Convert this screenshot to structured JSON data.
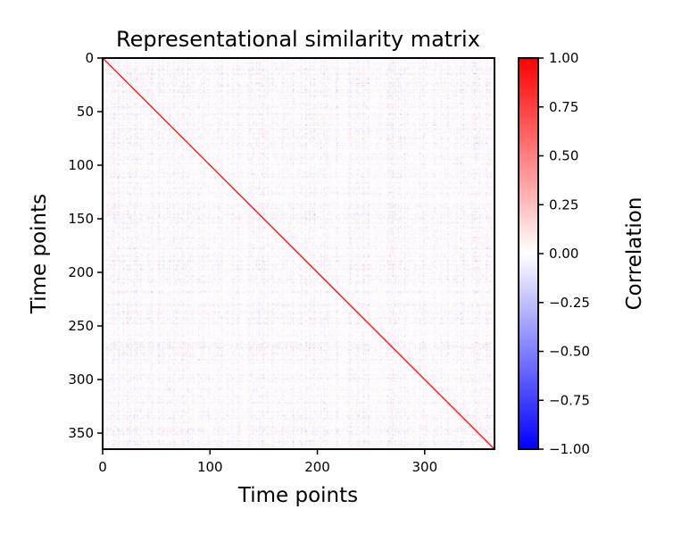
{
  "chart_data": {
    "type": "heatmap",
    "title": "Representational similarity matrix",
    "xlabel": "Time points",
    "ylabel": "Time points",
    "matrix_size": 365,
    "xlim": [
      0,
      365
    ],
    "ylim": [
      365,
      0
    ],
    "x_ticks": [
      0,
      100,
      200,
      300
    ],
    "y_ticks": [
      0,
      50,
      100,
      150,
      200,
      250,
      300,
      350
    ],
    "x_tick_labels": [
      "0",
      "100",
      "200",
      "300"
    ],
    "y_tick_labels": [
      "0",
      "50",
      "100",
      "150",
      "200",
      "250",
      "300",
      "350"
    ],
    "diagonal_value": 1.0,
    "off_diagonal_range": [
      -0.4,
      0.4
    ],
    "colormap": "bwr",
    "colormap_colors": {
      "low": "#0000ff",
      "mid": "#ffffff",
      "high": "#ff0000"
    },
    "colorbar": {
      "label": "Correlation",
      "vmin": -1.0,
      "vmax": 1.0,
      "ticks": [
        1.0,
        0.75,
        0.5,
        0.25,
        0.0,
        -0.25,
        -0.5,
        -0.75,
        -1.0
      ],
      "tick_labels": [
        "1.00",
        "0.75",
        "0.50",
        "0.25",
        "0.00",
        "−0.25",
        "−0.50",
        "−0.75",
        "−1.00"
      ]
    }
  }
}
